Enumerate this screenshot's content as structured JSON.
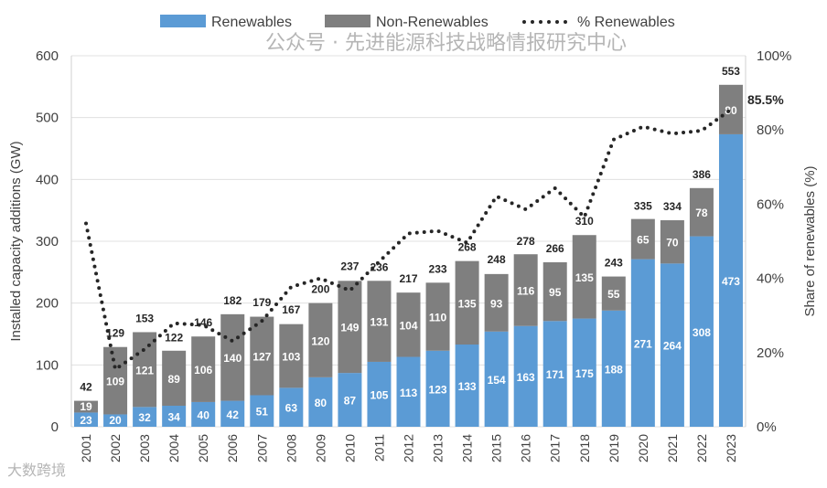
{
  "chart_data": {
    "type": "bar",
    "stacked": true,
    "title": "",
    "xlabel": "",
    "ylabel": "Installed capacity additions (GW)",
    "y2label": "Share of renewables (%)",
    "ylim": [
      0,
      600
    ],
    "y2lim": [
      0,
      100
    ],
    "yticks": [
      "0",
      "100",
      "200",
      "300",
      "400",
      "500",
      "600"
    ],
    "y2ticks": [
      "0%",
      "20%",
      "40%",
      "60%",
      "80%",
      "100%"
    ],
    "legend_position": "top",
    "categories": [
      "2001",
      "2002",
      "2003",
      "2004",
      "2005",
      "2006",
      "2007",
      "2008",
      "2009",
      "2010",
      "2011",
      "2012",
      "2013",
      "2014",
      "2015",
      "2016",
      "2017",
      "2018",
      "2019",
      "2020",
      "2021",
      "2022",
      "2023"
    ],
    "series": [
      {
        "name": "Renewables",
        "color": "#5b9bd5",
        "values": [
          23,
          20,
          32,
          34,
          40,
          42,
          51,
          63,
          80,
          87,
          105,
          113,
          123,
          133,
          154,
          163,
          171,
          175,
          188,
          271,
          264,
          308,
          473
        ]
      },
      {
        "name": "Non-Renewables",
        "color": "#7f7f7f",
        "values": [
          19,
          109,
          121,
          89,
          106,
          140,
          127,
          103,
          120,
          149,
          131,
          104,
          110,
          135,
          93,
          116,
          95,
          135,
          55,
          65,
          70,
          78,
          80
        ]
      }
    ],
    "totals": [
      42,
      129,
      153,
      122,
      146,
      182,
      179,
      167,
      200,
      237,
      236,
      217,
      233,
      268,
      248,
      278,
      266,
      310,
      243,
      335,
      334,
      386,
      553
    ],
    "line_series": {
      "name": "% Renewables",
      "color": "#262626",
      "axis": "right",
      "values": [
        54.8,
        15.5,
        20.9,
        27.9,
        27.4,
        23.1,
        28.5,
        37.7,
        40.0,
        36.7,
        44.5,
        52.1,
        52.8,
        49.6,
        62.1,
        58.6,
        64.3,
        56.5,
        77.4,
        80.9,
        79.0,
        79.8,
        85.5
      ]
    },
    "annotations": [
      "85.5%"
    ]
  },
  "watermark": {
    "text": "公众号 · 先进能源科技战略情报研究中心",
    "logo": "大数跨境"
  }
}
